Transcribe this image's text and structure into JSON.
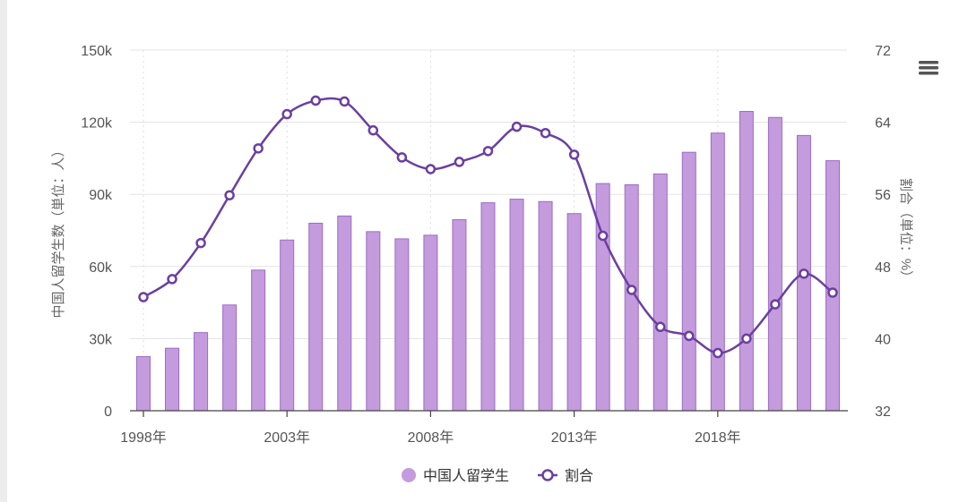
{
  "menu": {
    "icon": "hamburger-menu-icon"
  },
  "chart_data": {
    "type": "bar+line",
    "x": [
      1998,
      1999,
      2000,
      2001,
      2002,
      2003,
      2004,
      2005,
      2006,
      2007,
      2008,
      2009,
      2010,
      2011,
      2012,
      2013,
      2014,
      2015,
      2016,
      2017,
      2018,
      2019,
      2020,
      2021,
      2022
    ],
    "x_tick_labels": [
      "1998年",
      "2003年",
      "2008年",
      "2013年",
      "2018年"
    ],
    "series": [
      {
        "name": "中国人留学生",
        "type": "bar",
        "axis": "left",
        "color": "#c49bdc",
        "values": [
          22500,
          26000,
          32500,
          44000,
          58500,
          71000,
          78000,
          81000,
          74500,
          71500,
          73000,
          79500,
          86500,
          88000,
          87000,
          82000,
          94500,
          94000,
          98500,
          107500,
          115500,
          124500,
          122000,
          114500,
          104000
        ]
      },
      {
        "name": "割合",
        "type": "line",
        "axis": "right",
        "color": "#6b3fa0",
        "values": [
          44.6,
          46.6,
          50.6,
          55.9,
          61.1,
          64.9,
          66.4,
          66.3,
          63.1,
          60.1,
          58.8,
          59.6,
          60.8,
          63.5,
          62.8,
          60.4,
          51.4,
          45.4,
          41.3,
          40.3,
          38.4,
          40.0,
          43.8,
          47.2,
          45.1
        ]
      }
    ],
    "y_left": {
      "label": "中国人留学生数（単位：人）",
      "ticks": [
        "0",
        "30k",
        "60k",
        "90k",
        "120k",
        "150k"
      ],
      "range": [
        0,
        150000
      ]
    },
    "y_right": {
      "label": "割合（単位：%）",
      "ticks": [
        "32",
        "40",
        "48",
        "56",
        "64",
        "72"
      ],
      "range": [
        32,
        72
      ]
    },
    "grid": true,
    "legend": "bottom-center"
  }
}
